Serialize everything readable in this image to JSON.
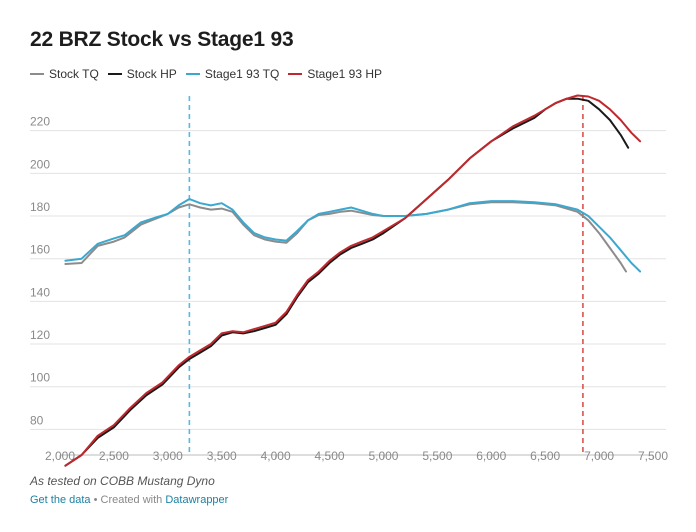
{
  "chart_data": {
    "type": "line",
    "title": "22 BRZ Stock vs Stage1 93",
    "xlabel": "",
    "ylabel": "",
    "xlim": [
      2000,
      7500
    ],
    "ylim": [
      68,
      240
    ],
    "x_ticks": [
      2000,
      2500,
      3000,
      3500,
      4000,
      4500,
      5000,
      5500,
      6000,
      6500,
      7000,
      7500
    ],
    "x_tick_labels": [
      "2,000",
      "2,500",
      "3,000",
      "3,500",
      "4,000",
      "4,500",
      "5,000",
      "5,500",
      "6,000",
      "6,500",
      "7,000",
      "7,500"
    ],
    "y_ticks": [
      80,
      100,
      120,
      140,
      160,
      180,
      200,
      220
    ],
    "y_tick_labels": [
      "80",
      "100",
      "120",
      "140",
      "160",
      "180",
      "200",
      "220"
    ],
    "grid": "horizontal",
    "legend_position": "top-left",
    "reference_lines": [
      {
        "x": 3200,
        "color": "#56b8e3"
      },
      {
        "x": 6850,
        "color": "#d9534f"
      }
    ],
    "series": [
      {
        "name": "Stock TQ",
        "color": "#8c8c8c",
        "points": [
          [
            2050,
            157.5
          ],
          [
            2200,
            158
          ],
          [
            2350,
            166
          ],
          [
            2500,
            168
          ],
          [
            2600,
            170
          ],
          [
            2750,
            176
          ],
          [
            2900,
            179
          ],
          [
            3000,
            181
          ],
          [
            3100,
            184
          ],
          [
            3200,
            185.5
          ],
          [
            3300,
            184
          ],
          [
            3400,
            183
          ],
          [
            3500,
            183.5
          ],
          [
            3600,
            182
          ],
          [
            3700,
            176
          ],
          [
            3800,
            171
          ],
          [
            3900,
            169
          ],
          [
            4000,
            168
          ],
          [
            4100,
            167.5
          ],
          [
            4200,
            172
          ],
          [
            4300,
            178
          ],
          [
            4400,
            180.5
          ],
          [
            4500,
            181
          ],
          [
            4600,
            182
          ],
          [
            4700,
            182.5
          ],
          [
            4800,
            181.5
          ],
          [
            4900,
            180.5
          ],
          [
            5000,
            180
          ],
          [
            5200,
            180
          ],
          [
            5400,
            181
          ],
          [
            5600,
            183
          ],
          [
            5800,
            185.5
          ],
          [
            6000,
            186.5
          ],
          [
            6200,
            186.5
          ],
          [
            6400,
            186
          ],
          [
            6600,
            185
          ],
          [
            6800,
            182
          ],
          [
            6900,
            178
          ],
          [
            7000,
            172
          ],
          [
            7100,
            165
          ],
          [
            7200,
            158
          ],
          [
            7250,
            154
          ]
        ]
      },
      {
        "name": "Stock HP",
        "color": "#1a1a1a",
        "points": [
          [
            2050,
            63
          ],
          [
            2200,
            68
          ],
          [
            2350,
            76
          ],
          [
            2500,
            81
          ],
          [
            2650,
            89
          ],
          [
            2800,
            96
          ],
          [
            2950,
            101
          ],
          [
            3100,
            109
          ],
          [
            3200,
            113
          ],
          [
            3300,
            116
          ],
          [
            3400,
            119
          ],
          [
            3500,
            124
          ],
          [
            3600,
            125.5
          ],
          [
            3700,
            125
          ],
          [
            3800,
            126
          ],
          [
            3900,
            127.5
          ],
          [
            4000,
            129
          ],
          [
            4100,
            134
          ],
          [
            4200,
            142
          ],
          [
            4300,
            149
          ],
          [
            4400,
            153
          ],
          [
            4500,
            158
          ],
          [
            4600,
            162
          ],
          [
            4700,
            165
          ],
          [
            4800,
            167
          ],
          [
            4900,
            169
          ],
          [
            5000,
            172
          ],
          [
            5200,
            179
          ],
          [
            5400,
            188
          ],
          [
            5600,
            197
          ],
          [
            5800,
            207
          ],
          [
            6000,
            215
          ],
          [
            6200,
            221
          ],
          [
            6400,
            226
          ],
          [
            6500,
            230
          ],
          [
            6600,
            233
          ],
          [
            6700,
            235
          ],
          [
            6800,
            235
          ],
          [
            6900,
            234
          ],
          [
            7000,
            230
          ],
          [
            7100,
            225
          ],
          [
            7200,
            218
          ],
          [
            7270,
            212
          ]
        ]
      },
      {
        "name": "Stage1 93 TQ",
        "color": "#3ba8d0",
        "points": [
          [
            2050,
            159
          ],
          [
            2200,
            160
          ],
          [
            2350,
            167
          ],
          [
            2500,
            169.5
          ],
          [
            2600,
            171
          ],
          [
            2750,
            177
          ],
          [
            2900,
            179.5
          ],
          [
            3000,
            181
          ],
          [
            3100,
            185
          ],
          [
            3200,
            188
          ],
          [
            3300,
            186
          ],
          [
            3400,
            185
          ],
          [
            3500,
            186
          ],
          [
            3600,
            183
          ],
          [
            3700,
            177
          ],
          [
            3800,
            172
          ],
          [
            3900,
            170
          ],
          [
            4000,
            169
          ],
          [
            4100,
            168.5
          ],
          [
            4200,
            173
          ],
          [
            4300,
            178
          ],
          [
            4400,
            181
          ],
          [
            4500,
            182
          ],
          [
            4600,
            183
          ],
          [
            4700,
            184
          ],
          [
            4800,
            182.5
          ],
          [
            4900,
            181
          ],
          [
            5000,
            180
          ],
          [
            5200,
            180
          ],
          [
            5400,
            181
          ],
          [
            5600,
            183
          ],
          [
            5800,
            186
          ],
          [
            6000,
            187
          ],
          [
            6200,
            187
          ],
          [
            6400,
            186.5
          ],
          [
            6600,
            185.5
          ],
          [
            6800,
            183
          ],
          [
            6900,
            180
          ],
          [
            7000,
            175
          ],
          [
            7100,
            170
          ],
          [
            7200,
            164
          ],
          [
            7300,
            158
          ],
          [
            7380,
            154
          ]
        ]
      },
      {
        "name": "Stage1 93 HP",
        "color": "#c0282d",
        "points": [
          [
            2050,
            63
          ],
          [
            2200,
            68
          ],
          [
            2350,
            77
          ],
          [
            2500,
            82
          ],
          [
            2650,
            90
          ],
          [
            2800,
            97
          ],
          [
            2950,
            102
          ],
          [
            3100,
            110
          ],
          [
            3200,
            114
          ],
          [
            3300,
            117
          ],
          [
            3400,
            120
          ],
          [
            3500,
            125
          ],
          [
            3600,
            126
          ],
          [
            3700,
            125.5
          ],
          [
            3800,
            127
          ],
          [
            3900,
            128.5
          ],
          [
            4000,
            130
          ],
          [
            4100,
            135
          ],
          [
            4200,
            143
          ],
          [
            4300,
            150
          ],
          [
            4400,
            154
          ],
          [
            4500,
            159
          ],
          [
            4600,
            163
          ],
          [
            4700,
            166
          ],
          [
            4800,
            168
          ],
          [
            4900,
            170
          ],
          [
            5000,
            173
          ],
          [
            5200,
            179
          ],
          [
            5400,
            188
          ],
          [
            5600,
            197
          ],
          [
            5800,
            207
          ],
          [
            6000,
            215
          ],
          [
            6200,
            222
          ],
          [
            6400,
            227
          ],
          [
            6500,
            230
          ],
          [
            6600,
            233
          ],
          [
            6700,
            235
          ],
          [
            6800,
            236.5
          ],
          [
            6900,
            236
          ],
          [
            7000,
            234
          ],
          [
            7100,
            230
          ],
          [
            7200,
            225
          ],
          [
            7300,
            219
          ],
          [
            7380,
            215
          ]
        ]
      }
    ]
  },
  "note": "As tested on COBB Mustang Dyno",
  "footer": {
    "get_data": "Get the data",
    "separator": "•",
    "created_with": "Created with",
    "tool": "Datawrapper"
  }
}
